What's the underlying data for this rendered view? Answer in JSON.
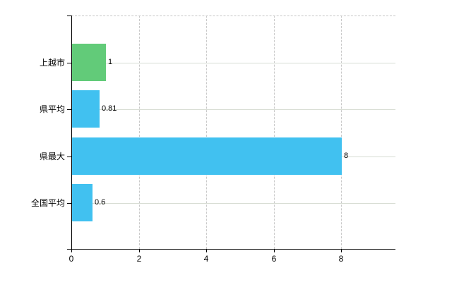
{
  "chart_data": {
    "type": "bar",
    "orientation": "horizontal",
    "title": "",
    "xlabel": "",
    "ylabel": "",
    "categories": [
      "上越市",
      "県平均",
      "県最大",
      "全国平均"
    ],
    "values": [
      1,
      0.81,
      8,
      0.6
    ],
    "value_labels": [
      "1",
      "0.81",
      "8",
      "0.6"
    ],
    "bar_colors": [
      "#62cb79",
      "#41c1f0",
      "#41c1f0",
      "#41c1f0"
    ],
    "x_ticks": [
      0,
      2,
      4,
      6,
      8
    ],
    "x_tick_labels": [
      "0",
      "2",
      "4",
      "6",
      "8"
    ],
    "xlim": [
      0,
      9.6
    ],
    "legend_position": "none",
    "grid": {
      "vertical_style": "dashed",
      "horizontal_style": "solid",
      "top_border_style": "dashed"
    }
  },
  "colors": {
    "background": "#ffffff",
    "axis": "#000000",
    "grid_vertical": "#c9c9c9",
    "grid_horizontal": "#d7dcd3",
    "text": "#000000",
    "bar_green": "#62cb79",
    "bar_blue": "#41c1f0"
  }
}
